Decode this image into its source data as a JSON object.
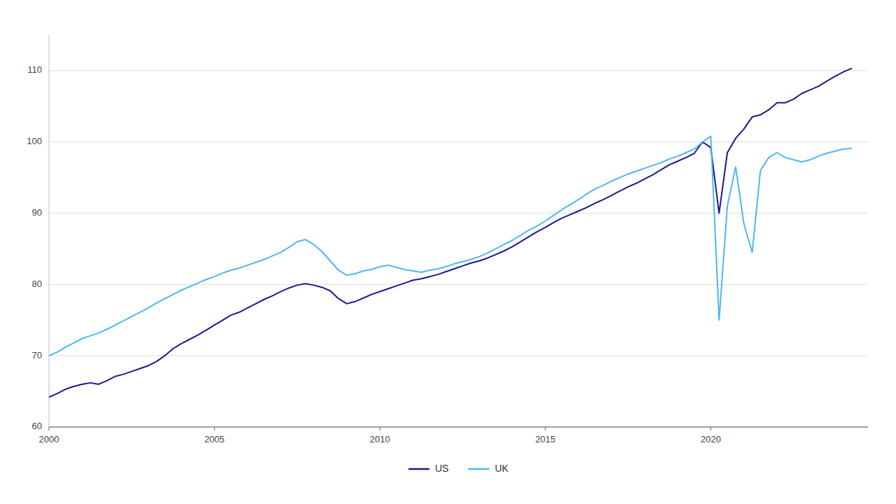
{
  "chart_data": {
    "type": "line",
    "x": [
      2000.0,
      2000.25,
      2000.5,
      2000.75,
      2001.0,
      2001.25,
      2001.5,
      2001.75,
      2002.0,
      2002.25,
      2002.5,
      2002.75,
      2003.0,
      2003.25,
      2003.5,
      2003.75,
      2004.0,
      2004.25,
      2004.5,
      2004.75,
      2005.0,
      2005.25,
      2005.5,
      2005.75,
      2006.0,
      2006.25,
      2006.5,
      2006.75,
      2007.0,
      2007.25,
      2007.5,
      2007.75,
      2008.0,
      2008.25,
      2008.5,
      2008.75,
      2009.0,
      2009.25,
      2009.5,
      2009.75,
      2010.0,
      2010.25,
      2010.5,
      2010.75,
      2011.0,
      2011.25,
      2011.5,
      2011.75,
      2012.0,
      2012.25,
      2012.5,
      2012.75,
      2013.0,
      2013.25,
      2013.5,
      2013.75,
      2014.0,
      2014.25,
      2014.5,
      2014.75,
      2015.0,
      2015.25,
      2015.5,
      2015.75,
      2016.0,
      2016.25,
      2016.5,
      2016.75,
      2017.0,
      2017.25,
      2017.5,
      2017.75,
      2018.0,
      2018.25,
      2018.5,
      2018.75,
      2019.0,
      2019.25,
      2019.5,
      2019.75,
      2020.0,
      2020.25,
      2020.5,
      2020.75,
      2021.0,
      2021.25,
      2021.5,
      2021.75,
      2022.0,
      2022.25,
      2022.5,
      2022.75,
      2023.0,
      2023.25,
      2023.5,
      2023.75,
      2024.0,
      2024.25
    ],
    "series": [
      {
        "name": "US",
        "color": "#1a1a8c",
        "values": [
          64.2,
          64.7,
          65.3,
          65.7,
          66.0,
          66.2,
          66.0,
          66.5,
          67.1,
          67.4,
          67.8,
          68.2,
          68.6,
          69.2,
          70.0,
          71.0,
          71.7,
          72.3,
          72.9,
          73.6,
          74.3,
          75.0,
          75.7,
          76.1,
          76.7,
          77.3,
          77.9,
          78.4,
          79.0,
          79.5,
          79.9,
          80.1,
          79.9,
          79.6,
          79.1,
          78.0,
          77.3,
          77.6,
          78.1,
          78.6,
          79.0,
          79.4,
          79.8,
          80.2,
          80.6,
          80.8,
          81.1,
          81.4,
          81.8,
          82.2,
          82.6,
          83.0,
          83.3,
          83.7,
          84.2,
          84.7,
          85.3,
          86.0,
          86.7,
          87.4,
          88.0,
          88.7,
          89.3,
          89.8,
          90.3,
          90.8,
          91.4,
          91.9,
          92.5,
          93.1,
          93.7,
          94.2,
          94.8,
          95.4,
          96.1,
          96.8,
          97.3,
          97.8,
          98.4,
          100.0,
          99.2,
          90.0,
          98.5,
          100.5,
          101.8,
          103.5,
          103.8,
          104.5,
          105.5,
          105.5,
          106.0,
          106.8,
          107.3,
          107.8,
          108.5,
          109.2,
          109.8,
          110.3
        ]
      },
      {
        "name": "UK",
        "color": "#4db8f0",
        "values": [
          70.0,
          70.5,
          71.2,
          71.8,
          72.4,
          72.8,
          73.2,
          73.7,
          74.3,
          74.9,
          75.5,
          76.1,
          76.7,
          77.4,
          78.0,
          78.6,
          79.2,
          79.7,
          80.2,
          80.7,
          81.1,
          81.6,
          82.0,
          82.3,
          82.7,
          83.1,
          83.5,
          84.0,
          84.5,
          85.2,
          86.0,
          86.3,
          85.6,
          84.6,
          83.3,
          82.0,
          81.3,
          81.5,
          81.9,
          82.1,
          82.5,
          82.7,
          82.4,
          82.1,
          81.9,
          81.7,
          82.0,
          82.2,
          82.5,
          82.9,
          83.2,
          83.5,
          83.9,
          84.4,
          85.0,
          85.6,
          86.2,
          86.9,
          87.6,
          88.2,
          88.9,
          89.7,
          90.5,
          91.2,
          91.9,
          92.7,
          93.4,
          93.9,
          94.5,
          95.0,
          95.5,
          95.9,
          96.3,
          96.7,
          97.1,
          97.6,
          98.0,
          98.5,
          99.0,
          100.0,
          100.8,
          75.0,
          91.0,
          96.5,
          88.5,
          84.5,
          96.0,
          97.8,
          98.5,
          97.8,
          97.5,
          97.2,
          97.5,
          98.0,
          98.4,
          98.7,
          99.0,
          99.1
        ]
      }
    ],
    "xlim": [
      2000.0,
      2024.75
    ],
    "xticks": [
      2000,
      2005,
      2010,
      2015,
      2020
    ],
    "ylim": [
      60,
      115
    ],
    "yticks": [
      60,
      70,
      80,
      90,
      100,
      110
    ],
    "grid": "y",
    "legend": "bottom"
  }
}
